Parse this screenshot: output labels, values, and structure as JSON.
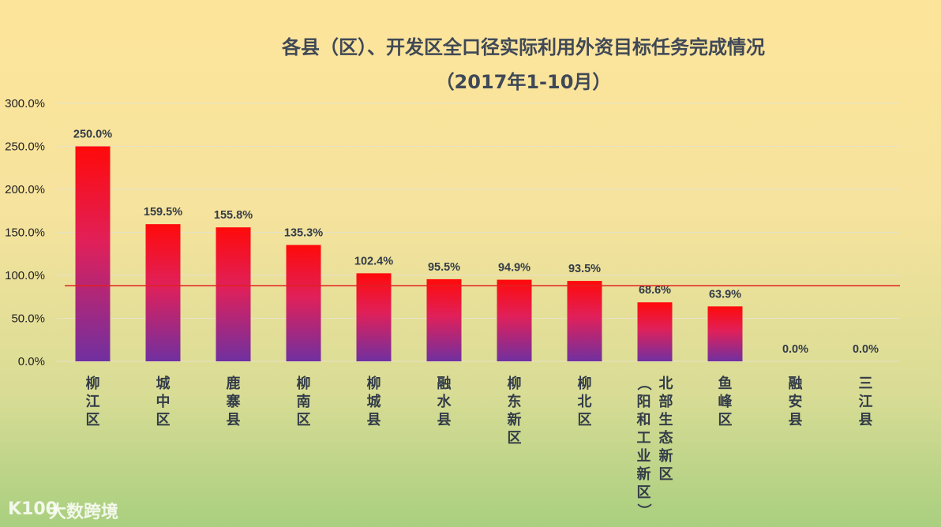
{
  "chart_data": {
    "type": "bar",
    "title": "各县（区）、开发区全口径实际利用外资目标任务完成情况",
    "subtitle": "（2017年1-10月）",
    "categories": [
      [
        "柳江区"
      ],
      [
        "城中区"
      ],
      [
        "鹿寨县"
      ],
      [
        "柳南区"
      ],
      [
        "柳城县"
      ],
      [
        "融水县"
      ],
      [
        "柳东新区"
      ],
      [
        "柳北区"
      ],
      [
        "北部生态新区",
        "（阳和工业新区）"
      ],
      [
        "鱼峰区"
      ],
      [
        "融安县"
      ],
      [
        "三江县"
      ]
    ],
    "values": [
      250.0,
      159.5,
      155.8,
      135.3,
      102.4,
      95.5,
      94.9,
      93.5,
      68.6,
      63.9,
      0.0,
      0.0
    ],
    "value_labels": [
      "250.0%",
      "159.5%",
      "155.8%",
      "135.3%",
      "102.4%",
      "95.5%",
      "94.9%",
      "93.5%",
      "68.6%",
      "63.9%",
      "0.0%",
      "0.0%"
    ],
    "ylim": [
      0,
      300
    ],
    "yticks": [
      0,
      50,
      100,
      150,
      200,
      250,
      300
    ],
    "ytick_labels": [
      "0.0%",
      "50.0%",
      "100.0%",
      "150.0%",
      "200.0%",
      "250.0%",
      "300.0%"
    ],
    "reference_line": 88,
    "grid": true,
    "colors": {
      "bar_top": "#ff0a0a",
      "bar_mid": "#e0205a",
      "bar_bottom": "#7030a0",
      "reference_line": "#e02020"
    }
  },
  "watermark": {
    "logo_text": "K100",
    "text": "大数跨境"
  }
}
